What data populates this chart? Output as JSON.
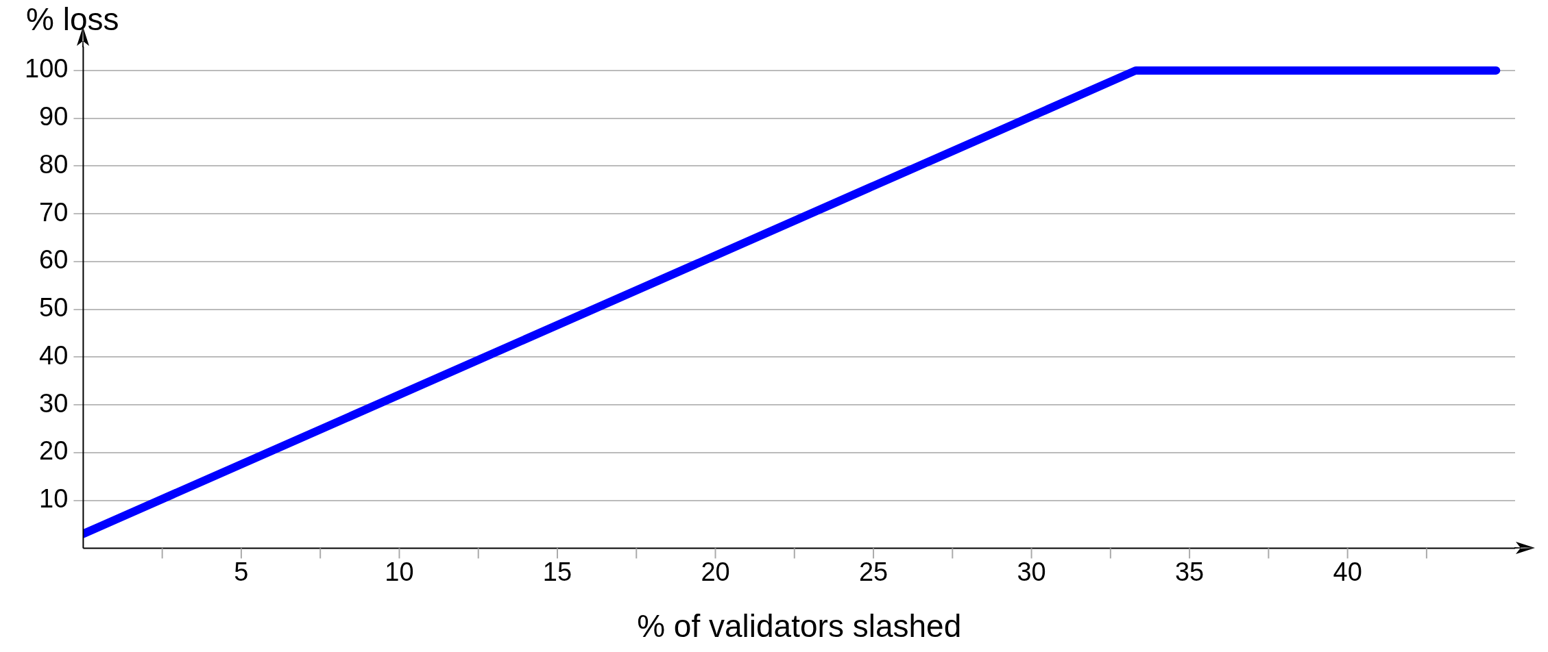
{
  "chart_data": {
    "type": "line",
    "xlabel": "% of validators slashed",
    "ylabel": "% loss",
    "x": [
      0,
      33.3,
      44.7
    ],
    "series": [
      {
        "color": "#0000ff",
        "values": [
          3,
          100,
          100
        ]
      }
    ],
    "xlim": [
      0,
      45.3
    ],
    "ylim": [
      0,
      105
    ],
    "xticks": [
      {
        "value": 2.5,
        "label": null
      },
      5,
      {
        "value": 7.5,
        "label": null
      },
      10,
      {
        "value": 12.5,
        "label": null
      },
      15,
      {
        "value": 17.5,
        "label": null
      },
      20,
      {
        "value": 22.5,
        "label": null
      },
      25,
      {
        "value": 27.5,
        "label": null
      },
      30,
      {
        "value": 32.5,
        "label": null
      },
      35,
      {
        "value": 37.5,
        "label": null
      },
      40,
      {
        "value": 42.5,
        "label": null
      }
    ],
    "yticks": [
      10,
      20,
      30,
      40,
      50,
      60,
      70,
      80,
      90,
      100
    ],
    "grid": "y",
    "marker": "none",
    "line_style": "solid",
    "legend": false
  }
}
